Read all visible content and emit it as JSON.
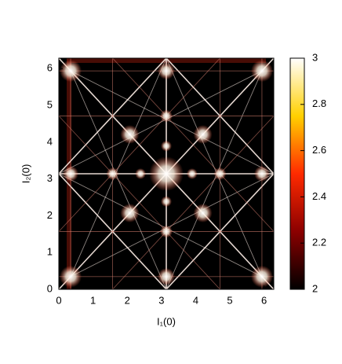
{
  "chart_data": {
    "type": "heatmap",
    "x_label": "I₁(0)",
    "y_label": "I₂(0)",
    "xlim": [
      0,
      6.2832
    ],
    "ylim": [
      0,
      6.2832
    ],
    "xticks": [
      0,
      1,
      2,
      3,
      4,
      5,
      6
    ],
    "yticks": [
      0,
      1,
      2,
      3,
      4,
      5,
      6
    ],
    "colorbar": {
      "lim": [
        2,
        3
      ],
      "ticks": [
        2,
        2.2,
        2.4,
        2.6,
        2.8,
        3
      ],
      "colors": [
        "#000000",
        "#8b0000",
        "#ff2a00",
        "#ffd000",
        "#ffffff"
      ]
    }
  }
}
